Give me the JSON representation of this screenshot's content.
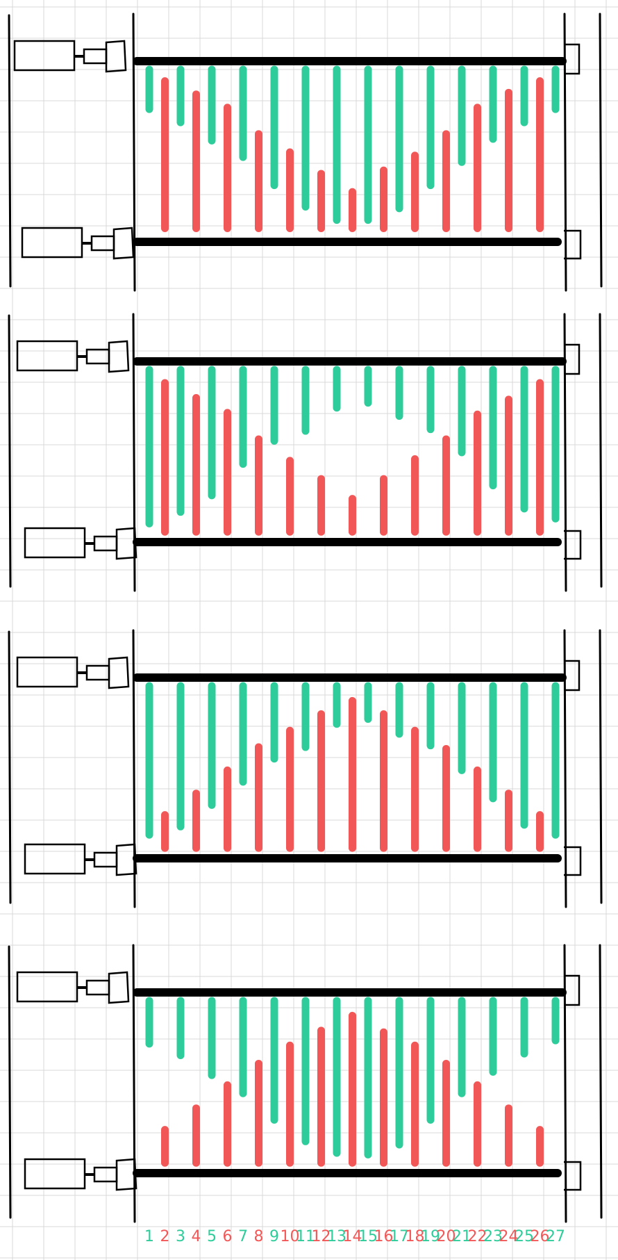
{
  "colors": {
    "background": "#ffffff",
    "grid": "#d9d9d9",
    "ink": "#000000",
    "green": "#2ecc9a",
    "red": "#f25757"
  },
  "panels": [
    {
      "name": "panel-1",
      "pattern": "edge-high",
      "bars": [
        {
          "n": 1,
          "from": 0.0,
          "to": 0.24
        },
        {
          "n": 2,
          "from": 0.07,
          "to": 0.96
        },
        {
          "n": 3,
          "from": 0.0,
          "to": 0.32
        },
        {
          "n": 4,
          "from": 0.15,
          "to": 0.96
        },
        {
          "n": 5,
          "from": 0.0,
          "to": 0.43
        },
        {
          "n": 6,
          "from": 0.23,
          "to": 0.96
        },
        {
          "n": 7,
          "from": 0.0,
          "to": 0.53
        },
        {
          "n": 8,
          "from": 0.39,
          "to": 0.96
        },
        {
          "n": 9,
          "from": 0.0,
          "to": 0.7
        },
        {
          "n": 10,
          "from": 0.5,
          "to": 0.96
        },
        {
          "n": 11,
          "from": 0.0,
          "to": 0.83
        },
        {
          "n": 12,
          "from": 0.63,
          "to": 0.96
        },
        {
          "n": 13,
          "from": 0.0,
          "to": 0.91
        },
        {
          "n": 14,
          "from": 0.74,
          "to": 0.96
        },
        {
          "n": 15,
          "from": 0.0,
          "to": 0.91
        },
        {
          "n": 16,
          "from": 0.61,
          "to": 0.96
        },
        {
          "n": 17,
          "from": 0.0,
          "to": 0.84
        },
        {
          "n": 18,
          "from": 0.52,
          "to": 0.96
        },
        {
          "n": 19,
          "from": 0.0,
          "to": 0.7
        },
        {
          "n": 20,
          "from": 0.39,
          "to": 0.96
        },
        {
          "n": 21,
          "from": 0.0,
          "to": 0.56
        },
        {
          "n": 22,
          "from": 0.23,
          "to": 0.96
        },
        {
          "n": 23,
          "from": 0.0,
          "to": 0.42
        },
        {
          "n": 24,
          "from": 0.14,
          "to": 0.96
        },
        {
          "n": 25,
          "from": 0.0,
          "to": 0.32
        },
        {
          "n": 26,
          "from": 0.07,
          "to": 0.96
        },
        {
          "n": 27,
          "from": 0.0,
          "to": 0.24
        }
      ]
    },
    {
      "name": "panel-2",
      "pattern": "edge-tall-center-short",
      "bars": [
        {
          "n": 1,
          "from": 0.0,
          "to": 0.93
        },
        {
          "n": 2,
          "from": 0.08,
          "to": 0.98
        },
        {
          "n": 3,
          "from": 0.0,
          "to": 0.86
        },
        {
          "n": 4,
          "from": 0.17,
          "to": 0.98
        },
        {
          "n": 5,
          "from": 0.0,
          "to": 0.76
        },
        {
          "n": 6,
          "from": 0.26,
          "to": 0.98
        },
        {
          "n": 7,
          "from": 0.0,
          "to": 0.57
        },
        {
          "n": 8,
          "from": 0.42,
          "to": 0.98
        },
        {
          "n": 9,
          "from": 0.0,
          "to": 0.43
        },
        {
          "n": 10,
          "from": 0.55,
          "to": 0.98
        },
        {
          "n": 11,
          "from": 0.0,
          "to": 0.37
        },
        {
          "n": 12,
          "from": 0.66,
          "to": 0.98
        },
        {
          "n": 13,
          "from": 0.0,
          "to": 0.23
        },
        {
          "n": 14,
          "from": 0.78,
          "to": 0.98
        },
        {
          "n": 15,
          "from": 0.0,
          "to": 0.2
        },
        {
          "n": 16,
          "from": 0.66,
          "to": 0.98
        },
        {
          "n": 17,
          "from": 0.0,
          "to": 0.28
        },
        {
          "n": 18,
          "from": 0.54,
          "to": 0.98
        },
        {
          "n": 19,
          "from": 0.0,
          "to": 0.36
        },
        {
          "n": 20,
          "from": 0.42,
          "to": 0.98
        },
        {
          "n": 21,
          "from": 0.0,
          "to": 0.5
        },
        {
          "n": 22,
          "from": 0.27,
          "to": 0.98
        },
        {
          "n": 23,
          "from": 0.0,
          "to": 0.7
        },
        {
          "n": 24,
          "from": 0.18,
          "to": 0.98
        },
        {
          "n": 25,
          "from": 0.0,
          "to": 0.84
        },
        {
          "n": 26,
          "from": 0.08,
          "to": 0.98
        },
        {
          "n": 27,
          "from": 0.0,
          "to": 0.9
        }
      ]
    },
    {
      "name": "panel-3",
      "pattern": "center-high",
      "bars": [
        {
          "n": 1,
          "from": 0.0,
          "to": 0.9
        },
        {
          "n": 2,
          "from": 0.78,
          "to": 0.98
        },
        {
          "n": 3,
          "from": 0.0,
          "to": 0.85
        },
        {
          "n": 4,
          "from": 0.65,
          "to": 0.98
        },
        {
          "n": 5,
          "from": 0.0,
          "to": 0.72
        },
        {
          "n": 6,
          "from": 0.51,
          "to": 0.98
        },
        {
          "n": 7,
          "from": 0.0,
          "to": 0.58
        },
        {
          "n": 8,
          "from": 0.37,
          "to": 0.98
        },
        {
          "n": 9,
          "from": 0.0,
          "to": 0.44
        },
        {
          "n": 10,
          "from": 0.27,
          "to": 0.98
        },
        {
          "n": 11,
          "from": 0.0,
          "to": 0.37
        },
        {
          "n": 12,
          "from": 0.17,
          "to": 0.98
        },
        {
          "n": 13,
          "from": 0.0,
          "to": 0.23
        },
        {
          "n": 14,
          "from": 0.09,
          "to": 0.98
        },
        {
          "n": 15,
          "from": 0.0,
          "to": 0.2
        },
        {
          "n": 16,
          "from": 0.17,
          "to": 0.98
        },
        {
          "n": 17,
          "from": 0.0,
          "to": 0.29
        },
        {
          "n": 18,
          "from": 0.27,
          "to": 0.98
        },
        {
          "n": 19,
          "from": 0.0,
          "to": 0.36
        },
        {
          "n": 20,
          "from": 0.38,
          "to": 0.98
        },
        {
          "n": 21,
          "from": 0.0,
          "to": 0.51
        },
        {
          "n": 22,
          "from": 0.51,
          "to": 0.98
        },
        {
          "n": 23,
          "from": 0.0,
          "to": 0.68
        },
        {
          "n": 24,
          "from": 0.65,
          "to": 0.98
        },
        {
          "n": 25,
          "from": 0.0,
          "to": 0.84
        },
        {
          "n": 26,
          "from": 0.78,
          "to": 0.98
        },
        {
          "n": 27,
          "from": 0.0,
          "to": 0.9
        }
      ]
    },
    {
      "name": "panel-4",
      "pattern": "edge-low-center-tall",
      "bars": [
        {
          "n": 1,
          "from": 0.0,
          "to": 0.26
        },
        {
          "n": 2,
          "from": 0.78,
          "to": 0.98
        },
        {
          "n": 3,
          "from": 0.0,
          "to": 0.33
        },
        {
          "n": 4,
          "from": 0.65,
          "to": 0.98
        },
        {
          "n": 5,
          "from": 0.0,
          "to": 0.45
        },
        {
          "n": 6,
          "from": 0.51,
          "to": 0.98
        },
        {
          "n": 7,
          "from": 0.0,
          "to": 0.56
        },
        {
          "n": 8,
          "from": 0.38,
          "to": 0.98
        },
        {
          "n": 9,
          "from": 0.0,
          "to": 0.72
        },
        {
          "n": 10,
          "from": 0.27,
          "to": 0.98
        },
        {
          "n": 11,
          "from": 0.0,
          "to": 0.85
        },
        {
          "n": 12,
          "from": 0.18,
          "to": 0.98
        },
        {
          "n": 13,
          "from": 0.0,
          "to": 0.92
        },
        {
          "n": 14,
          "from": 0.09,
          "to": 0.98
        },
        {
          "n": 15,
          "from": 0.0,
          "to": 0.93
        },
        {
          "n": 16,
          "from": 0.19,
          "to": 0.98
        },
        {
          "n": 17,
          "from": 0.0,
          "to": 0.87
        },
        {
          "n": 18,
          "from": 0.27,
          "to": 0.98
        },
        {
          "n": 19,
          "from": 0.0,
          "to": 0.72
        },
        {
          "n": 20,
          "from": 0.38,
          "to": 0.98
        },
        {
          "n": 21,
          "from": 0.0,
          "to": 0.56
        },
        {
          "n": 22,
          "from": 0.51,
          "to": 0.98
        },
        {
          "n": 23,
          "from": 0.0,
          "to": 0.43
        },
        {
          "n": 24,
          "from": 0.65,
          "to": 0.98
        },
        {
          "n": 25,
          "from": 0.0,
          "to": 0.32
        },
        {
          "n": 26,
          "from": 0.78,
          "to": 0.98
        },
        {
          "n": 27,
          "from": 0.0,
          "to": 0.24
        }
      ]
    }
  ],
  "bar_numbers": [
    "1",
    "2",
    "3",
    "4",
    "5",
    "6",
    "7",
    "8",
    "9",
    "10",
    "11",
    "12",
    "13",
    "14",
    "15",
    "16",
    "17",
    "18",
    "19",
    "20",
    "21",
    "22",
    "23",
    "24",
    "25",
    "26",
    "27"
  ]
}
